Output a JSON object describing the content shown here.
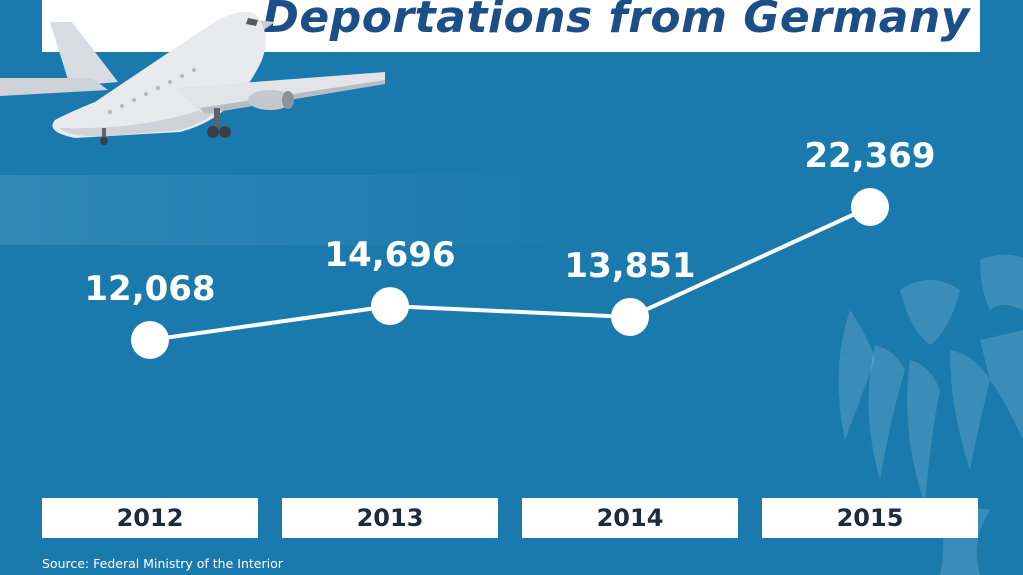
{
  "title": "Deportations from Germany",
  "source": "Source: Federal Ministry of the Interior",
  "colors": {
    "background": "#1a7aae",
    "title_text": "#1c4e88",
    "line": "#ffffff",
    "marker": "#ffffff"
  },
  "icons": [
    "airplane-icon",
    "federal-eagle-icon"
  ],
  "chart_data": {
    "type": "line",
    "categories": [
      "2012",
      "2013",
      "2014",
      "2015"
    ],
    "values": [
      12068,
      14696,
      13851,
      22369
    ],
    "value_labels": [
      "12,068",
      "14,696",
      "13,851",
      "22,369"
    ],
    "title": "Deportations from Germany",
    "xlabel": "",
    "ylabel": "",
    "grid": false,
    "legend": "none"
  }
}
